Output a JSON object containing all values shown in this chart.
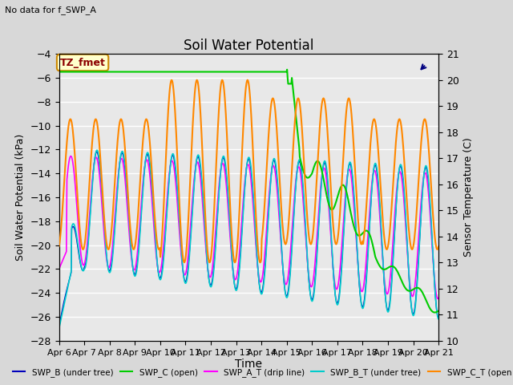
{
  "title": "Soil Water Potential",
  "subtitle": "No data for f_SWP_A",
  "annotation": "TZ_fmet",
  "xlabel": "Time",
  "ylabel_left": "Soil Water Potential (kPa)",
  "ylabel_right": "Sensor Temperature (C)",
  "ylim_left": [
    -28,
    -4
  ],
  "ylim_right": [
    10.0,
    21.0
  ],
  "yticks_left": [
    -28,
    -26,
    -24,
    -22,
    -20,
    -18,
    -16,
    -14,
    -12,
    -10,
    -8,
    -6,
    -4
  ],
  "yticks_right": [
    10.0,
    11.0,
    12.0,
    13.0,
    14.0,
    15.0,
    16.0,
    17.0,
    18.0,
    19.0,
    20.0,
    21.0
  ],
  "xtick_labels": [
    "Apr 6",
    "Apr 7",
    "Apr 8",
    "Apr 9",
    "Apr 10",
    "Apr 11",
    "Apr 12",
    "Apr 13",
    "Apr 14",
    "Apr 15",
    "Apr 16",
    "Apr 17",
    "Apr 18",
    "Apr 19",
    "Apr 20",
    "Apr 21"
  ],
  "col_swp_b": "#0000bb",
  "col_swp_c": "#00cc00",
  "col_swp_at": "#ff00ff",
  "col_swp_bt": "#00cccc",
  "col_swp_ct": "#ff8800",
  "fig_bg": "#d8d8d8",
  "plot_bg": "#e8e8e8",
  "grid_color": "#ffffff",
  "title_fontsize": 12,
  "label_fontsize": 9,
  "tick_fontsize": 8
}
